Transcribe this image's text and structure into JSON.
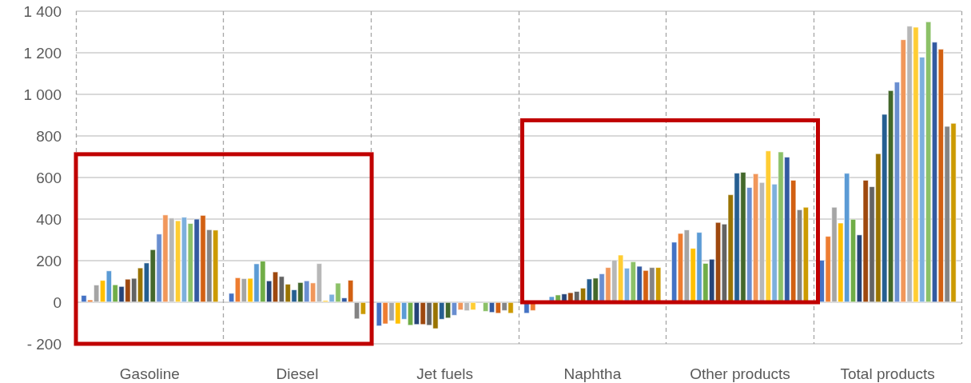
{
  "chart_data": {
    "type": "bar",
    "categories": [
      "Gasoline",
      "Diesel",
      "Jet fuels",
      "Naphtha",
      "Other products",
      "Total products"
    ],
    "ylim": [
      -200,
      1400
    ],
    "yticks": [
      {
        "value": -200,
        "label": "- 200"
      },
      0,
      200,
      400,
      600,
      800,
      {
        "value": 1000,
        "label": "1 000"
      },
      {
        "value": 1200,
        "label": "1 200"
      },
      {
        "value": 1400,
        "label": "1 400"
      }
    ],
    "grid": true,
    "series": [
      {
        "color": "#4472c4",
        "values": [
          34,
          44,
          -115,
          -54,
          290,
          203
        ]
      },
      {
        "color": "#ed7d31",
        "values": [
          12,
          119,
          -105,
          -41,
          332,
          318
        ]
      },
      {
        "color": "#a5a5a5",
        "values": [
          84,
          115,
          -90,
          null,
          349,
          458
        ]
      },
      {
        "color": "#ffc000",
        "values": [
          106,
          116,
          -105,
          null,
          260,
          382
        ]
      },
      {
        "color": "#5b9bd5",
        "values": [
          152,
          186,
          -83,
          28,
          337,
          621
        ]
      },
      {
        "color": "#70ad47",
        "values": [
          85,
          199,
          -112,
          36,
          188,
          400
        ]
      },
      {
        "color": "#264478",
        "values": [
          77,
          104,
          -108,
          41,
          208,
          325
        ]
      },
      {
        "color": "#9e480e",
        "values": [
          112,
          147,
          -108,
          47,
          385,
          588
        ]
      },
      {
        "color": "#636363",
        "values": [
          116,
          125,
          -112,
          53,
          377,
          557
        ]
      },
      {
        "color": "#997300",
        "values": [
          166,
          88,
          -128,
          69,
          518,
          716
        ]
      },
      {
        "color": "#255e91",
        "values": [
          190,
          61,
          -83,
          113,
          622,
          905
        ]
      },
      {
        "color": "#43682b",
        "values": [
          254,
          96,
          -77,
          117,
          626,
          1019
        ]
      },
      {
        "color": "#698ed0",
        "values": [
          329,
          104,
          -64,
          138,
          553,
          1060
        ]
      },
      {
        "color": "#f1975a",
        "values": [
          421,
          94,
          -38,
          168,
          619,
          1264
        ]
      },
      {
        "color": "#b7b7b7",
        "values": [
          406,
          187,
          -42,
          204,
          577,
          1329
        ]
      },
      {
        "color": "#ffcd33",
        "values": [
          393,
          9,
          -38,
          228,
          729,
          1324
        ]
      },
      {
        "color": "#7cafdd",
        "values": [
          410,
          39,
          null,
          165,
          569,
          1180
        ]
      },
      {
        "color": "#8cc168",
        "values": [
          380,
          93,
          -45,
          196,
          724,
          1350
        ]
      },
      {
        "color": "#335aa1",
        "values": [
          401,
          22,
          -50,
          174,
          699,
          1252
        ]
      },
      {
        "color": "#d26012",
        "values": [
          419,
          107,
          -54,
          154,
          588,
          1218
        ]
      },
      {
        "color": "#848484",
        "values": [
          350,
          -81,
          -41,
          168,
          446,
          847
        ]
      },
      {
        "color": "#cc9a00",
        "values": [
          348,
          -59,
          -54,
          168,
          458,
          862
        ]
      }
    ]
  }
}
